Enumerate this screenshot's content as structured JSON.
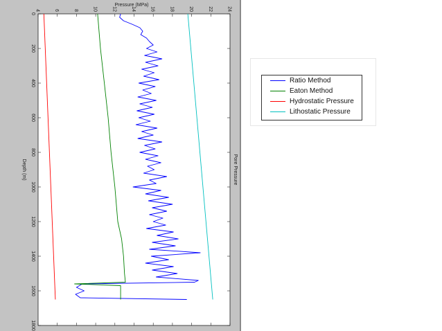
{
  "chart_data": {
    "type": "line",
    "title": "",
    "xlabel": "Depth (m)",
    "ylabel": "Pressure (MPa)",
    "right_label": "Pore Pressure",
    "xlim": [
      0,
      1800
    ],
    "ylim": [
      4,
      24
    ],
    "x_ticks": [
      "0",
      "200",
      "400",
      "600",
      "800",
      "1000",
      "1200",
      "1400",
      "1600",
      "1800"
    ],
    "y_ticks": [
      "4",
      "6",
      "8",
      "10",
      "12",
      "14",
      "16",
      "18",
      "20",
      "22",
      "24"
    ],
    "legend_position": "right",
    "series": [
      {
        "name": "Ratio Method",
        "color": "#0000ff",
        "points": [
          [
            0,
            12.6
          ],
          [
            20,
            12.5
          ],
          [
            40,
            12.9
          ],
          [
            60,
            13.8
          ],
          [
            80,
            14.6
          ],
          [
            100,
            14.9
          ],
          [
            120,
            14.7
          ],
          [
            140,
            15.3
          ],
          [
            160,
            15.6
          ],
          [
            180,
            16.0
          ],
          [
            200,
            15.3
          ],
          [
            220,
            16.4
          ],
          [
            240,
            15.1
          ],
          [
            260,
            16.9
          ],
          [
            280,
            15.2
          ],
          [
            300,
            16.5
          ],
          [
            320,
            14.8
          ],
          [
            340,
            16.1
          ],
          [
            360,
            15.0
          ],
          [
            380,
            16.6
          ],
          [
            400,
            14.5
          ],
          [
            420,
            16.2
          ],
          [
            440,
            14.9
          ],
          [
            460,
            15.8
          ],
          [
            480,
            14.4
          ],
          [
            500,
            16.3
          ],
          [
            520,
            14.6
          ],
          [
            540,
            15.9
          ],
          [
            560,
            14.3
          ],
          [
            580,
            16.1
          ],
          [
            600,
            14.5
          ],
          [
            620,
            15.7
          ],
          [
            640,
            14.2
          ],
          [
            660,
            16.4
          ],
          [
            680,
            14.8
          ],
          [
            700,
            16.0
          ],
          [
            720,
            14.4
          ],
          [
            740,
            16.9
          ],
          [
            760,
            15.1
          ],
          [
            780,
            16.2
          ],
          [
            800,
            14.6
          ],
          [
            820,
            16.5
          ],
          [
            840,
            15.2
          ],
          [
            860,
            16.8
          ],
          [
            880,
            15.4
          ],
          [
            900,
            16.1
          ],
          [
            920,
            15.0
          ],
          [
            940,
            17.4
          ],
          [
            960,
            15.6
          ],
          [
            980,
            16.3
          ],
          [
            1000,
            13.9
          ],
          [
            1020,
            16.8
          ],
          [
            1040,
            15.2
          ],
          [
            1060,
            17.6
          ],
          [
            1080,
            15.5
          ],
          [
            1100,
            18.0
          ],
          [
            1120,
            15.9
          ],
          [
            1140,
            17.4
          ],
          [
            1160,
            15.6
          ],
          [
            1180,
            17.0
          ],
          [
            1200,
            16.0
          ],
          [
            1220,
            17.3
          ],
          [
            1240,
            15.3
          ],
          [
            1260,
            18.1
          ],
          [
            1280,
            16.4
          ],
          [
            1300,
            18.6
          ],
          [
            1320,
            15.9
          ],
          [
            1340,
            18.3
          ],
          [
            1360,
            15.6
          ],
          [
            1380,
            20.9
          ],
          [
            1400,
            15.8
          ],
          [
            1420,
            17.6
          ],
          [
            1440,
            15.2
          ],
          [
            1460,
            18.1
          ],
          [
            1480,
            15.9
          ],
          [
            1500,
            18.5
          ],
          [
            1520,
            16.3
          ],
          [
            1540,
            20.7
          ],
          [
            1550,
            20.3
          ],
          [
            1560,
            8.6
          ],
          [
            1580,
            8.0
          ],
          [
            1600,
            8.8
          ],
          [
            1620,
            7.9
          ],
          [
            1640,
            8.4
          ],
          [
            1650,
            19.5
          ]
        ]
      },
      {
        "name": "Eaton Method",
        "color": "#008000",
        "points": [
          [
            0,
            10.2
          ],
          [
            200,
            10.5
          ],
          [
            400,
            10.9
          ],
          [
            600,
            11.3
          ],
          [
            800,
            11.6
          ],
          [
            1000,
            12.0
          ],
          [
            1200,
            12.3
          ],
          [
            1300,
            12.7
          ],
          [
            1400,
            12.9
          ],
          [
            1500,
            13.0
          ],
          [
            1550,
            13.1
          ],
          [
            1560,
            7.8
          ],
          [
            1570,
            12.6
          ],
          [
            1650,
            12.6
          ]
        ]
      },
      {
        "name": "Hydrostatic Pressure",
        "color": "#ff0000",
        "points": [
          [
            0,
            4.6
          ],
          [
            1650,
            5.8
          ]
        ]
      },
      {
        "name": "Lithostatic Pressure",
        "color": "#00c0c0",
        "points": [
          [
            0,
            19.6
          ],
          [
            1650,
            22.2
          ]
        ]
      }
    ]
  }
}
